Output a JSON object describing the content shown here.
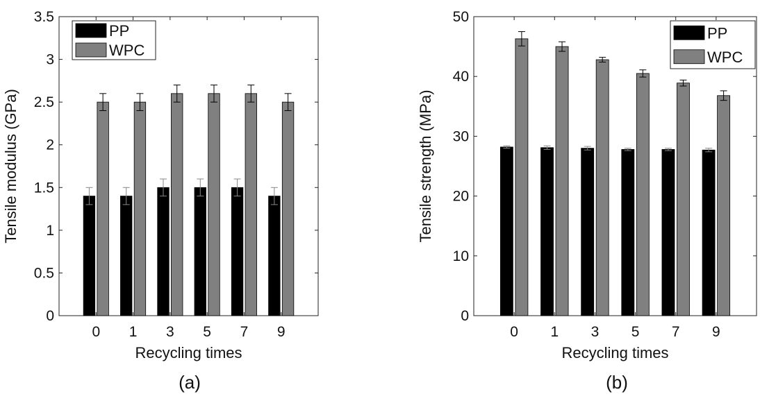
{
  "chart_data": [
    {
      "type": "bar",
      "panel_label": "(a)",
      "categories": [
        "0",
        "1",
        "3",
        "5",
        "7",
        "9"
      ],
      "series": [
        {
          "name": "PP",
          "color": "#000000",
          "values": [
            1.4,
            1.4,
            1.5,
            1.5,
            1.5,
            1.4
          ],
          "errors": [
            0.1,
            0.1,
            0.1,
            0.1,
            0.1,
            0.1
          ]
        },
        {
          "name": "WPC",
          "color": "#808080",
          "values": [
            2.5,
            2.5,
            2.6,
            2.6,
            2.6,
            2.5
          ],
          "errors": [
            0.1,
            0.1,
            0.1,
            0.1,
            0.1,
            0.1
          ]
        }
      ],
      "xlabel": "Recycling times",
      "ylabel": "Tensile modulus (GPa)",
      "ylim": [
        0,
        3.5
      ],
      "yticks": [
        "0",
        "0.5",
        "1",
        "1.5",
        "2",
        "2.5",
        "3",
        "3.5"
      ],
      "legend": "top-left",
      "grid": false
    },
    {
      "type": "bar",
      "panel_label": "(b)",
      "categories": [
        "0",
        "1",
        "3",
        "5",
        "7",
        "9"
      ],
      "series": [
        {
          "name": "PP",
          "color": "#000000",
          "values": [
            28.2,
            28.1,
            28.0,
            27.8,
            27.8,
            27.7
          ],
          "errors": [
            0.2,
            0.3,
            0.3,
            0.2,
            0.2,
            0.3
          ]
        },
        {
          "name": "WPC",
          "color": "#808080",
          "values": [
            46.3,
            45.0,
            42.8,
            40.5,
            38.9,
            36.8
          ],
          "errors": [
            1.2,
            0.8,
            0.4,
            0.6,
            0.5,
            0.8
          ]
        }
      ],
      "xlabel": "Recycling times",
      "ylabel": "Tensile strength (MPa)",
      "ylim": [
        0,
        50
      ],
      "yticks": [
        "0",
        "10",
        "20",
        "30",
        "40",
        "50"
      ],
      "legend": "top-right",
      "grid": false
    }
  ]
}
